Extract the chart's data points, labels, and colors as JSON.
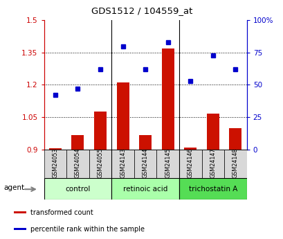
{
  "title": "GDS1512 / 104559_at",
  "samples": [
    "GSM24053",
    "GSM24054",
    "GSM24055",
    "GSM24143",
    "GSM24144",
    "GSM24145",
    "GSM24146",
    "GSM24147",
    "GSM24148"
  ],
  "groups": [
    {
      "label": "control",
      "start": 0,
      "end": 3,
      "color": "#ccffcc"
    },
    {
      "label": "retinoic acid",
      "start": 3,
      "end": 6,
      "color": "#aaffaa"
    },
    {
      "label": "trichostatin A",
      "start": 6,
      "end": 9,
      "color": "#55dd55"
    }
  ],
  "red_bars": [
    0.905,
    0.965,
    1.075,
    1.21,
    0.965,
    1.37,
    0.91,
    1.065,
    1.0
  ],
  "blue_dots": [
    42,
    47,
    62,
    80,
    62,
    83,
    53,
    73,
    62
  ],
  "ylim_left": [
    0.9,
    1.5
  ],
  "ylim_right": [
    0,
    100
  ],
  "yticks_left": [
    0.9,
    1.05,
    1.2,
    1.35,
    1.5
  ],
  "yticks_right": [
    0,
    25,
    50,
    75,
    100
  ],
  "ytick_labels_right": [
    "0",
    "25",
    "50",
    "75",
    "100%"
  ],
  "left_axis_color": "#cc0000",
  "right_axis_color": "#0000cc",
  "bar_color": "#cc1100",
  "dot_color": "#0000cc",
  "baseline": 0.9,
  "legend_items": [
    {
      "color": "#cc1100",
      "label": "transformed count"
    },
    {
      "color": "#0000cc",
      "label": "percentile rank within the sample"
    }
  ]
}
